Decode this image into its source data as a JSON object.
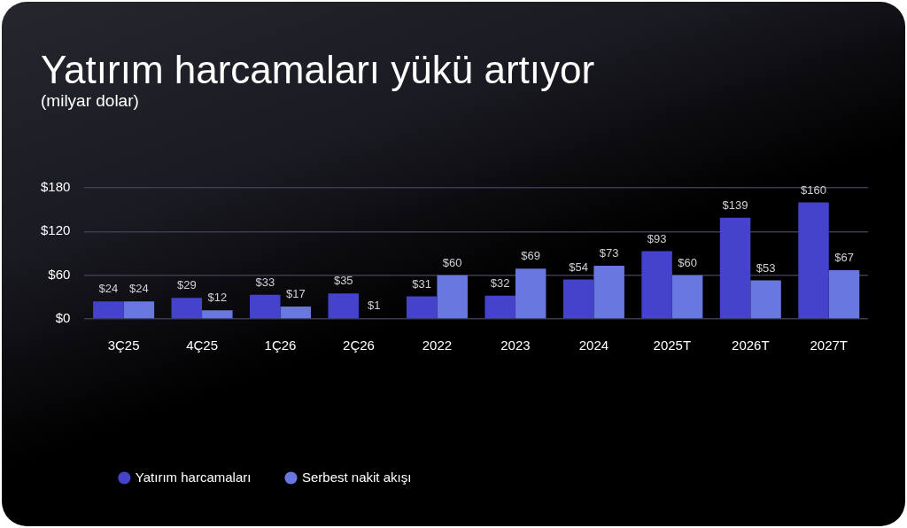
{
  "chart_data": {
    "type": "bar",
    "title": "Yatırım harcamaları yükü artıyor",
    "subtitle": "(milyar dolar)",
    "categories": [
      "3Ç25",
      "4Ç25",
      "1Ç26",
      "2Ç26",
      "2022",
      "2023",
      "2024",
      "2025T",
      "2026T",
      "2027T"
    ],
    "series": [
      {
        "name": "Yatırım harcamaları",
        "color": "#4542cc",
        "values": [
          24,
          29,
          33,
          35,
          31,
          32,
          54,
          93,
          139,
          160
        ],
        "value_labels": [
          "$24",
          "$29",
          "$33",
          "$35",
          "$31",
          "$32",
          "$54",
          "$93",
          "$139",
          "$160"
        ]
      },
      {
        "name": "Serbest nakit akışı",
        "color": "#6878e0",
        "values": [
          24,
          12,
          17,
          1,
          60,
          69,
          73,
          60,
          53,
          67
        ],
        "value_labels": [
          "$24",
          "$12",
          "$17",
          "$1",
          "$60",
          "$69",
          "$73",
          "$60",
          "$53",
          "$67"
        ]
      }
    ],
    "ylim": [
      0,
      180
    ],
    "yticks": [
      {
        "value": 0,
        "label": "$0"
      },
      {
        "value": 60,
        "label": "$60"
      },
      {
        "value": 120,
        "label": "$120"
      },
      {
        "value": 180,
        "label": "$180"
      }
    ],
    "grid": "y",
    "legend": "bottom"
  }
}
